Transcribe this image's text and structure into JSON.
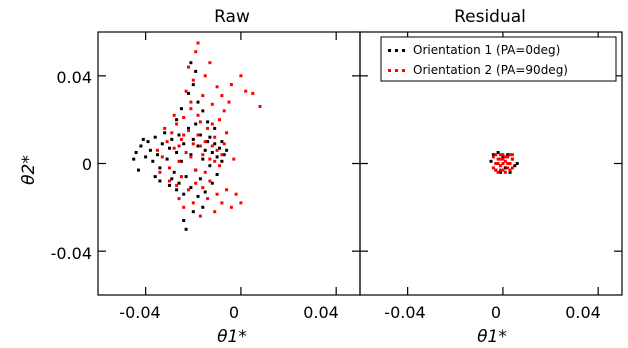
{
  "chart_data": [
    {
      "type": "scatter",
      "title": "Raw",
      "xlabel": "θ1*",
      "ylabel": "θ2*",
      "xlim": [
        -0.06,
        0.05
      ],
      "ylim": [
        -0.06,
        0.06
      ],
      "xticks": [
        "-0.04",
        "0",
        "0.04"
      ],
      "yticks": [
        "0.04",
        "0",
        "-0.04"
      ],
      "legend": null,
      "series": [
        {
          "name": "Orientation 1 (PA=0deg)",
          "color": "#000000",
          "points": [
            [
              -0.044,
              0.005
            ],
            [
              -0.042,
              0.008
            ],
            [
              -0.04,
              0.003
            ],
            [
              -0.039,
              0.01
            ],
            [
              -0.038,
              0.006
            ],
            [
              -0.037,
              0.001
            ],
            [
              -0.036,
              0.012
            ],
            [
              -0.035,
              0.004
            ],
            [
              -0.034,
              -0.002
            ],
            [
              -0.033,
              0.009
            ],
            [
              -0.032,
              0.014
            ],
            [
              -0.031,
              0.002
            ],
            [
              -0.03,
              0.007
            ],
            [
              -0.029,
              0.011
            ],
            [
              -0.028,
              -0.004
            ],
            [
              -0.027,
              0.005
            ],
            [
              -0.026,
              0.013
            ],
            [
              -0.025,
              0.001
            ],
            [
              -0.024,
              0.009
            ],
            [
              -0.023,
              -0.006
            ],
            [
              -0.022,
              0.016
            ],
            [
              -0.021,
              0.004
            ],
            [
              -0.02,
              0.011
            ],
            [
              -0.019,
              -0.003
            ],
            [
              -0.018,
              0.008
            ],
            [
              -0.017,
              0.013
            ],
            [
              -0.016,
              0.002
            ],
            [
              -0.015,
              0.006
            ],
            [
              -0.014,
              0.01
            ],
            [
              -0.013,
              -0.001
            ],
            [
              -0.012,
              0.005
            ],
            [
              -0.011,
              0.009
            ],
            [
              -0.01,
              0.003
            ],
            [
              -0.009,
              0.007
            ],
            [
              -0.008,
              0.001
            ],
            [
              -0.007,
              0.004
            ],
            [
              -0.036,
              -0.006
            ],
            [
              -0.034,
              -0.008
            ],
            [
              -0.03,
              -0.01
            ],
            [
              -0.027,
              -0.012
            ],
            [
              -0.024,
              -0.014
            ],
            [
              -0.021,
              -0.011
            ],
            [
              -0.018,
              -0.015
            ],
            [
              -0.015,
              -0.013
            ],
            [
              -0.012,
              -0.009
            ],
            [
              -0.024,
              -0.026
            ],
            [
              -0.023,
              -0.03
            ],
            [
              -0.02,
              -0.022
            ],
            [
              -0.016,
              -0.02
            ],
            [
              -0.027,
              0.02
            ],
            [
              -0.025,
              0.025
            ],
            [
              -0.022,
              0.032
            ],
            [
              -0.02,
              0.036
            ],
            [
              -0.019,
              0.042
            ],
            [
              -0.021,
              0.046
            ],
            [
              -0.018,
              0.028
            ],
            [
              -0.016,
              0.024
            ],
            [
              -0.014,
              0.019
            ],
            [
              -0.011,
              0.016
            ],
            [
              -0.045,
              0.002
            ],
            [
              -0.043,
              -0.003
            ],
            [
              -0.041,
              0.011
            ],
            [
              -0.029,
              -0.007
            ],
            [
              -0.026,
              -0.009
            ],
            [
              -0.019,
              0.018
            ],
            [
              -0.017,
              -0.007
            ],
            [
              -0.013,
              0.012
            ],
            [
              -0.01,
              -0.005
            ],
            [
              -0.008,
              0.01
            ],
            [
              -0.006,
              0.006
            ]
          ]
        },
        {
          "name": "Orientation 2 (PA=90deg)",
          "color": "#ff0000",
          "points": [
            [
              -0.035,
              0.006
            ],
            [
              -0.033,
              0.003
            ],
            [
              -0.031,
              0.01
            ],
            [
              -0.03,
              -0.002
            ],
            [
              -0.029,
              0.014
            ],
            [
              -0.028,
              0.007
            ],
            [
              -0.027,
              0.018
            ],
            [
              -0.026,
              0.001
            ],
            [
              -0.025,
              0.011
            ],
            [
              -0.024,
              0.021
            ],
            [
              -0.023,
              0.005
            ],
            [
              -0.022,
              0.015
            ],
            [
              -0.021,
              0.025
            ],
            [
              -0.02,
              0.009
            ],
            [
              -0.019,
              -0.003
            ],
            [
              -0.018,
              0.013
            ],
            [
              -0.017,
              0.019
            ],
            [
              -0.016,
              0.004
            ],
            [
              -0.015,
              0.01
            ],
            [
              -0.014,
              0.016
            ],
            [
              -0.013,
              0.002
            ],
            [
              -0.012,
              0.008
            ],
            [
              -0.011,
              0.012
            ],
            [
              -0.01,
              0.006
            ],
            [
              -0.009,
              -0.001
            ],
            [
              -0.008,
              0.004
            ],
            [
              -0.03,
              -0.008
            ],
            [
              -0.027,
              -0.01
            ],
            [
              -0.025,
              -0.006
            ],
            [
              -0.022,
              -0.012
            ],
            [
              -0.019,
              -0.009
            ],
            [
              -0.016,
              -0.011
            ],
            [
              -0.013,
              -0.008
            ],
            [
              -0.01,
              -0.014
            ],
            [
              -0.008,
              -0.018
            ],
            [
              -0.006,
              -0.012
            ],
            [
              -0.004,
              -0.02
            ],
            [
              -0.002,
              -0.014
            ],
            [
              0.0,
              -0.018
            ],
            [
              -0.021,
              0.028
            ],
            [
              -0.023,
              0.033
            ],
            [
              -0.02,
              0.038
            ],
            [
              -0.022,
              0.044
            ],
            [
              -0.019,
              0.051
            ],
            [
              -0.018,
              0.055
            ],
            [
              -0.016,
              0.031
            ],
            [
              -0.015,
              0.04
            ],
            [
              -0.013,
              0.046
            ],
            [
              -0.012,
              0.027
            ],
            [
              -0.01,
              0.035
            ],
            [
              -0.008,
              0.031
            ],
            [
              -0.007,
              0.024
            ],
            [
              -0.005,
              0.028
            ],
            [
              -0.004,
              0.036
            ],
            [
              0.0,
              0.04
            ],
            [
              0.002,
              0.033
            ],
            [
              0.005,
              0.032
            ],
            [
              0.008,
              0.026
            ],
            [
              -0.026,
              -0.016
            ],
            [
              -0.024,
              -0.02
            ],
            [
              -0.02,
              -0.018
            ],
            [
              -0.017,
              -0.024
            ],
            [
              -0.014,
              -0.016
            ],
            [
              -0.011,
              -0.022
            ],
            [
              -0.032,
              0.016
            ],
            [
              -0.034,
              -0.004
            ],
            [
              -0.028,
              0.022
            ],
            [
              -0.018,
              0.022
            ],
            [
              -0.012,
              0.018
            ],
            [
              -0.009,
              0.02
            ],
            [
              -0.006,
              0.014
            ],
            [
              -0.024,
              0.013
            ],
            [
              -0.021,
              0.003
            ],
            [
              -0.017,
              0.008
            ],
            [
              -0.015,
              -0.004
            ],
            [
              -0.026,
              0.008
            ],
            [
              -0.011,
              0.001
            ],
            [
              -0.007,
              0.009
            ],
            [
              -0.003,
              0.002
            ]
          ]
        }
      ]
    },
    {
      "type": "scatter",
      "title": "Residual",
      "xlabel": "θ1*",
      "ylabel": "",
      "xlim": [
        -0.06,
        0.05
      ],
      "ylim": [
        -0.06,
        0.06
      ],
      "xticks": [
        "-0.04",
        "0",
        "0.04"
      ],
      "yticks": [],
      "legend": "top-right",
      "series": [
        {
          "name": "Orientation 1 (PA=0deg)",
          "color": "#000000",
          "points": [
            [
              -0.004,
              0.004
            ],
            [
              -0.003,
              -0.003
            ],
            [
              -0.002,
              0.005
            ],
            [
              -0.001,
              -0.004
            ],
            [
              0.0,
              0.003
            ],
            [
              0.001,
              -0.002
            ],
            [
              0.002,
              0.004
            ],
            [
              0.003,
              -0.004
            ],
            [
              0.004,
              0.002
            ],
            [
              0.005,
              -0.001
            ],
            [
              -0.005,
              0.001
            ],
            [
              0.006,
              0.0
            ]
          ]
        },
        {
          "name": "Orientation 2 (PA=90deg)",
          "color": "#ff0000",
          "points": [
            [
              -0.004,
              0.003
            ],
            [
              -0.004,
              -0.002
            ],
            [
              -0.003,
              0.004
            ],
            [
              -0.003,
              0.0
            ],
            [
              -0.003,
              -0.003
            ],
            [
              -0.002,
              0.002
            ],
            [
              -0.002,
              -0.004
            ],
            [
              -0.001,
              0.004
            ],
            [
              -0.001,
              -0.001
            ],
            [
              0.0,
              0.002
            ],
            [
              0.0,
              -0.003
            ],
            [
              0.0,
              0.004
            ],
            [
              0.001,
              0.001
            ],
            [
              0.001,
              -0.004
            ],
            [
              0.002,
              0.003
            ],
            [
              0.002,
              -0.002
            ],
            [
              0.003,
              0.004
            ],
            [
              0.003,
              0.0
            ],
            [
              0.003,
              -0.003
            ],
            [
              0.004,
              0.002
            ],
            [
              0.004,
              -0.002
            ],
            [
              -0.002,
              0.0
            ],
            [
              0.001,
              0.003
            ],
            [
              -0.001,
              0.002
            ],
            [
              0.002,
              0.0
            ],
            [
              0.0,
              0.0
            ],
            [
              -0.001,
              -0.003
            ],
            [
              0.004,
              0.004
            ]
          ]
        }
      ]
    }
  ]
}
